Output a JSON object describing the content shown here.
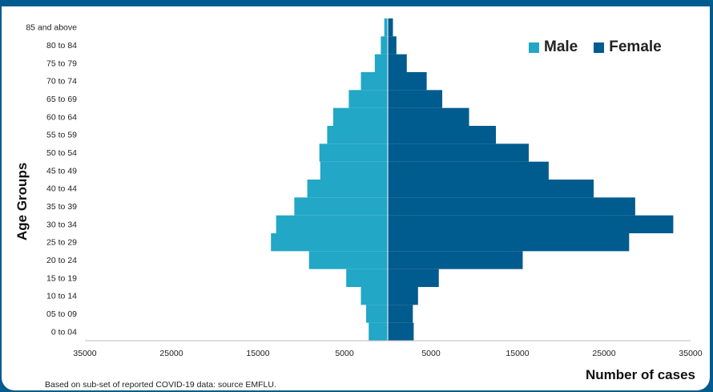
{
  "colors": {
    "male": "#22a7c6",
    "female": "#005b8e",
    "frame": "#005b8e"
  },
  "chart_data": {
    "type": "bar",
    "orientation": "horizontal-population-pyramid",
    "ylabel": "Age Groups",
    "xlabel": "Number of cases",
    "footnote": "Based on sub-set of reported COVID-19 data: source EMFLU.",
    "xlim": [
      -35000,
      35000
    ],
    "x_ticks": [
      "35000",
      "25000",
      "15000",
      "5000",
      "5000",
      "15000",
      "25000",
      "35000"
    ],
    "x_tick_values": [
      -35000,
      -25000,
      -15000,
      -5000,
      5000,
      15000,
      25000,
      35000
    ],
    "categories": [
      "0 to 04",
      "05 to 09",
      "10 to 14",
      "15 to 19",
      "20 to 24",
      "25 to 29",
      "30 to 34",
      "35 to 39",
      "40 to 44",
      "45 to 49",
      "50 to 54",
      "55 to 59",
      "60 to 64",
      "65 to 69",
      "70 to 74",
      "75 to 79",
      "80 to 84",
      "85 and above"
    ],
    "legend": [
      "Male",
      "Female"
    ],
    "legend_position": "top-right",
    "series": [
      {
        "name": "Male",
        "values": [
          2200,
          2500,
          3100,
          4800,
          9100,
          13500,
          12900,
          10800,
          9300,
          7800,
          7900,
          7000,
          6300,
          4500,
          3100,
          1500,
          800,
          400
        ]
      },
      {
        "name": "Female",
        "values": [
          3000,
          2900,
          3500,
          5900,
          15600,
          27900,
          33000,
          28600,
          23800,
          18600,
          16300,
          12500,
          9400,
          6300,
          4500,
          2200,
          1000,
          600
        ]
      }
    ]
  }
}
